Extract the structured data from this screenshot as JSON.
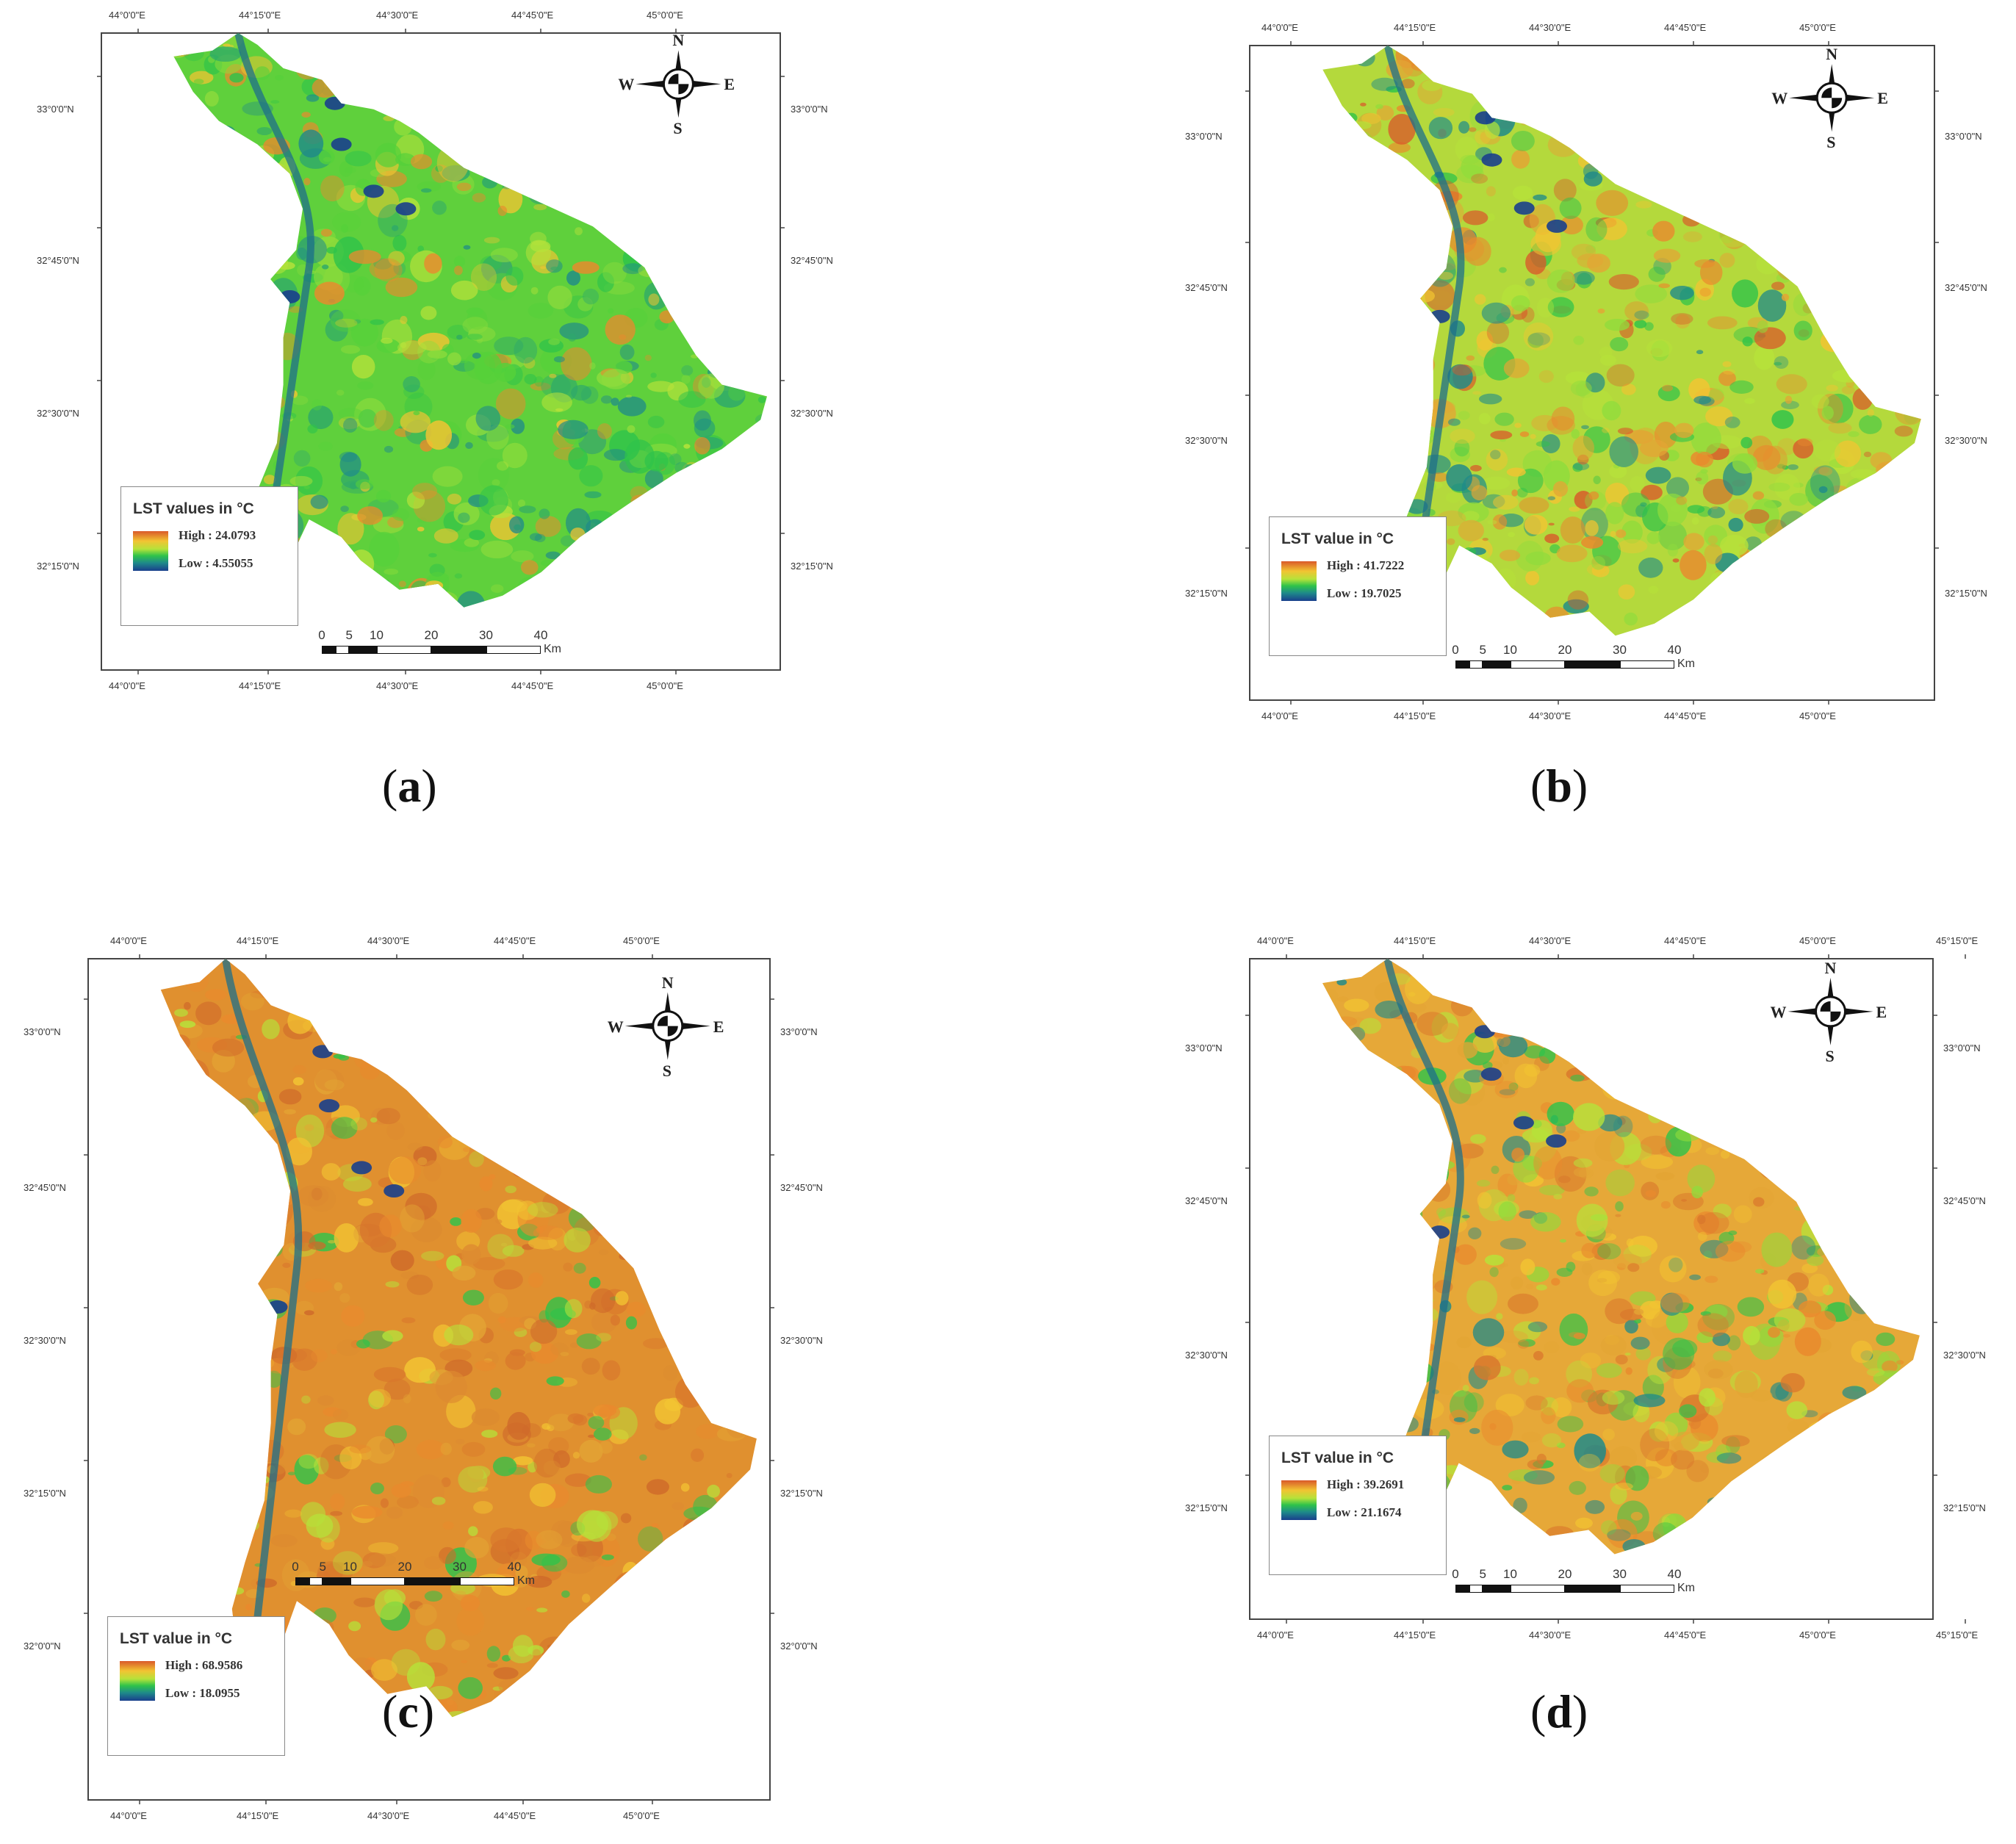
{
  "colors": {
    "ramp_high": "#d9592a",
    "ramp_mid_high": "#f2c432",
    "ramp_mid": "#b6e23a",
    "ramp_mid_low": "#2fc34a",
    "ramp_low": "#1a3f8c",
    "frame": "#444444"
  },
  "icons": {
    "north_arrow": "compass-rose-icon"
  },
  "panels": [
    {
      "caption_open": "(",
      "caption_letter": "a",
      "caption_close": ")",
      "legend_title": "LST values in °C",
      "high": "High : 24.0793",
      "low": "Low : 4.55055",
      "top_ticks": [
        "44°0'0\"E",
        "44°15'0\"E",
        "44°30'0\"E",
        "44°45'0\"E",
        "45°0'0\"E"
      ],
      "bottom_ticks": [
        "44°0'0\"E",
        "44°15'0\"E",
        "44°30'0\"E",
        "44°45'0\"E",
        "45°0'0\"E"
      ],
      "left_ticks": [
        "33°0'0\"N",
        "32°45'0\"N",
        "32°30'0\"N",
        "32°15'0\"N"
      ],
      "right_ticks": [
        "33°0'0\"N",
        "32°45'0\"N",
        "32°30'0\"N",
        "32°15'0\"N"
      ],
      "compass": {
        "n": "N",
        "s": "S",
        "e": "E",
        "w": "W"
      },
      "scale": {
        "labels": [
          "0",
          "5",
          "10",
          "20",
          "30",
          "40"
        ],
        "unit": "Km"
      },
      "character": "green"
    },
    {
      "caption_open": "(",
      "caption_letter": "b",
      "caption_close": ")",
      "legend_title": "LST value in °C",
      "high": "High : 41.7222",
      "low": "Low : 19.7025",
      "top_ticks": [
        "44°0'0\"E",
        "44°15'0\"E",
        "44°30'0\"E",
        "44°45'0\"E",
        "45°0'0\"E"
      ],
      "bottom_ticks": [
        "44°0'0\"E",
        "44°15'0\"E",
        "44°30'0\"E",
        "44°45'0\"E",
        "45°0'0\"E"
      ],
      "left_ticks": [
        "33°0'0\"N",
        "32°45'0\"N",
        "32°30'0\"N",
        "32°15'0\"N"
      ],
      "right_ticks": [
        "33°0'0\"N",
        "32°45'0\"N",
        "32°30'0\"N",
        "32°15'0\"N"
      ],
      "compass": {
        "n": "N",
        "s": "S",
        "e": "E",
        "w": "W"
      },
      "scale": {
        "labels": [
          "0",
          "5",
          "10",
          "20",
          "30",
          "40"
        ],
        "unit": "Km"
      },
      "character": "mixed"
    },
    {
      "caption_open": "(",
      "caption_letter": "c",
      "caption_close": ")",
      "legend_title": "LST value in °C",
      "high": "High : 68.9586",
      "low": "Low : 18.0955",
      "top_ticks": [
        "44°0'0\"E",
        "44°15'0\"E",
        "44°30'0\"E",
        "44°45'0\"E",
        "45°0'0\"E"
      ],
      "bottom_ticks": [
        "44°0'0\"E",
        "44°15'0\"E",
        "44°30'0\"E",
        "44°45'0\"E",
        "45°0'0\"E"
      ],
      "left_ticks": [
        "33°0'0\"N",
        "32°45'0\"N",
        "32°30'0\"N",
        "32°15'0\"N",
        "32°0'0\"N"
      ],
      "right_ticks": [
        "33°0'0\"N",
        "32°45'0\"N",
        "32°30'0\"N",
        "32°15'0\"N",
        "32°0'0\"N"
      ],
      "compass": {
        "n": "N",
        "s": "S",
        "e": "E",
        "w": "W"
      },
      "scale": {
        "labels": [
          "0",
          "5",
          "10",
          "20",
          "30",
          "40"
        ],
        "unit": "Km"
      },
      "character": "hot"
    },
    {
      "caption_open": "(",
      "caption_letter": "d",
      "caption_close": ")",
      "legend_title": "LST value in °C",
      "high": "High : 39.2691",
      "low": "Low : 21.1674",
      "top_ticks": [
        "44°0'0\"E",
        "44°15'0\"E",
        "44°30'0\"E",
        "44°45'0\"E",
        "45°0'0\"E",
        "45°15'0\"E"
      ],
      "bottom_ticks": [
        "44°0'0\"E",
        "44°15'0\"E",
        "44°30'0\"E",
        "44°45'0\"E",
        "45°0'0\"E",
        "45°15'0\"E"
      ],
      "left_ticks": [
        "33°0'0\"N",
        "32°45'0\"N",
        "32°30'0\"N",
        "32°15'0\"N"
      ],
      "right_ticks": [
        "33°0'0\"N",
        "32°45'0\"N",
        "32°30'0\"N",
        "32°15'0\"N"
      ],
      "compass": {
        "n": "N",
        "s": "S",
        "e": "E",
        "w": "W"
      },
      "scale": {
        "labels": [
          "0",
          "5",
          "10",
          "20",
          "30",
          "40"
        ],
        "unit": "Km"
      },
      "character": "warm"
    }
  ]
}
